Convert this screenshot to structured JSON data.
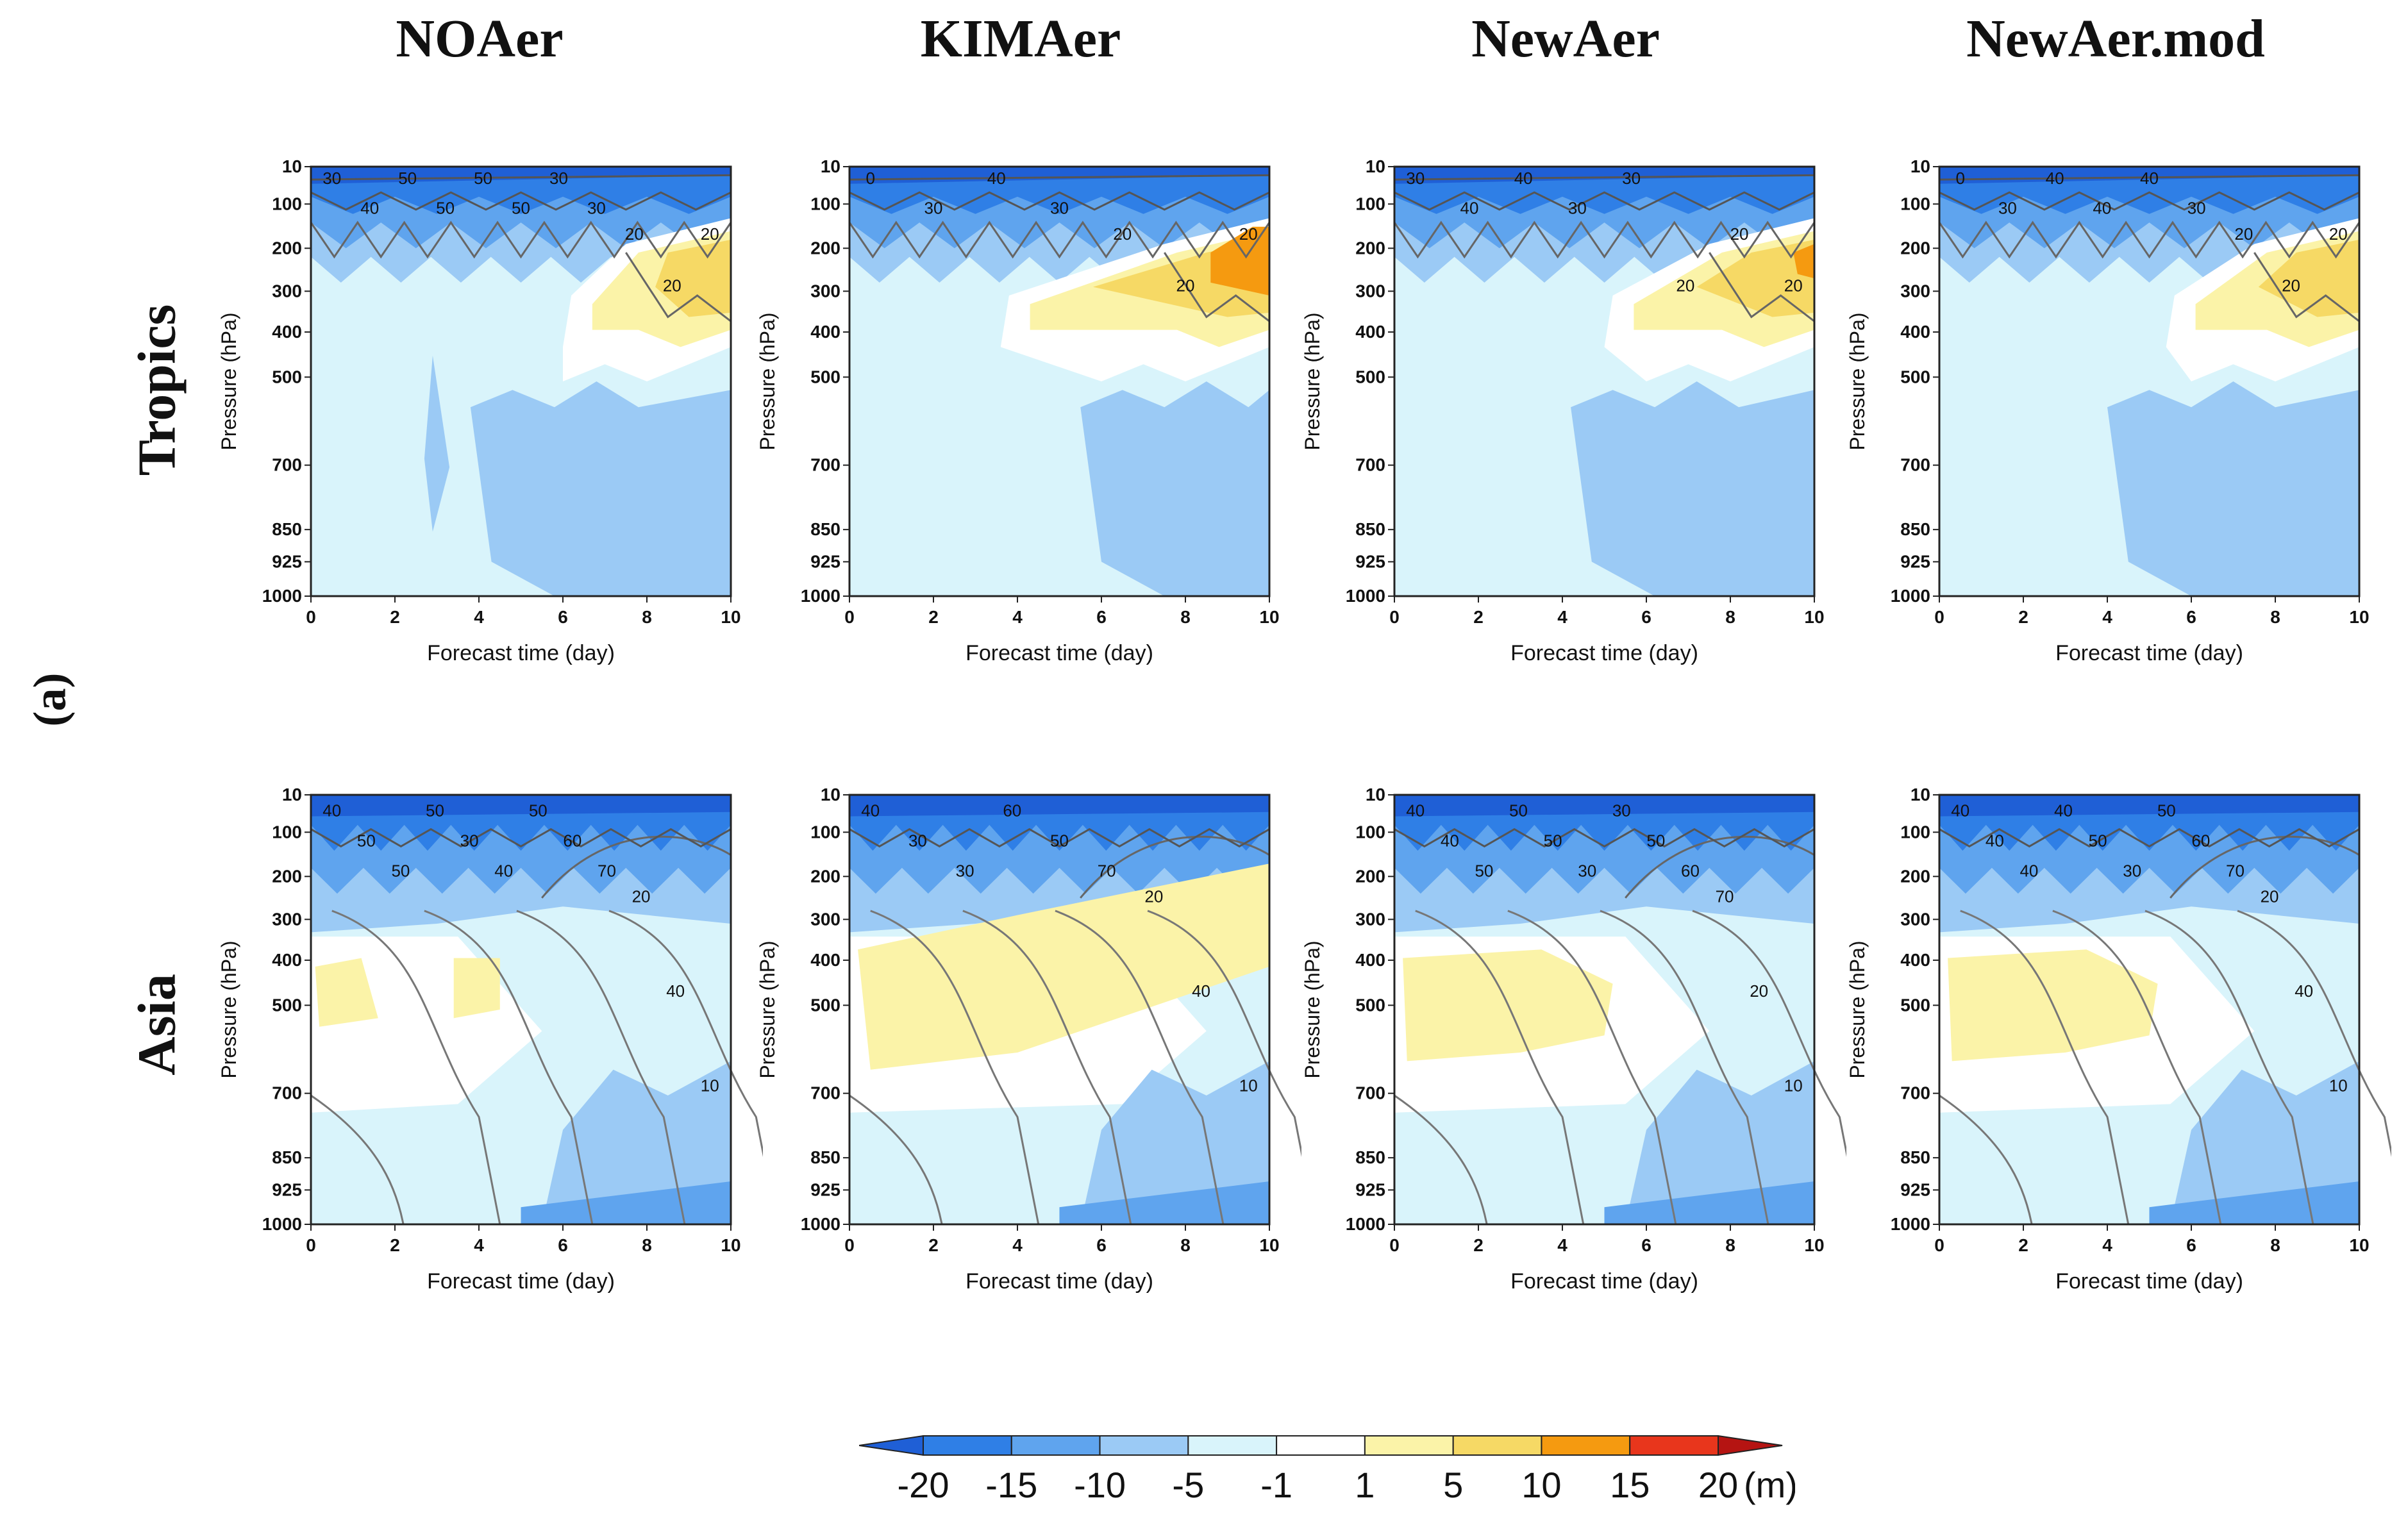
{
  "columns": [
    "NOAer",
    "KIMAer",
    "NewAer",
    "NewAer.mod"
  ],
  "rows": [
    "Tropics",
    "Asia"
  ],
  "panel_label": "(a)",
  "colorbar": {
    "levels": [
      "-20",
      "-15",
      "-10",
      "-5",
      "-1",
      "1",
      "5",
      "10",
      "15",
      "20"
    ],
    "unit": "(m)",
    "colors": [
      "#1f5fd6",
      "#2f7fe6",
      "#5fa4ee",
      "#9bcaf5",
      "#d9f4fb",
      "#ffffff",
      "#fbf3a8",
      "#f6d965",
      "#f59a10",
      "#e8361c",
      "#b51412"
    ]
  },
  "chart_data": {
    "type": "heatmap",
    "description_free": true,
    "xlabel": "Forecast time (day)",
    "ylabel": "Pressure (hPa)",
    "x_ticks": [
      "0",
      "2",
      "4",
      "6",
      "8",
      "10"
    ],
    "y_ticks": [
      "10",
      "100",
      "200",
      "300",
      "400",
      "500",
      "700",
      "850",
      "925",
      "1000"
    ],
    "xlim": [
      0,
      10
    ],
    "ylim_hPa": [
      1000,
      10
    ],
    "panels": [
      {
        "row": "Tropics",
        "column": "NOAer",
        "contour_labels": [
          "30",
          "40",
          "50",
          "50",
          "50",
          "50",
          "30",
          "30",
          "20",
          "20",
          "20"
        ]
      },
      {
        "row": "Tropics",
        "column": "KIMAer",
        "contour_labels": [
          "0",
          "30",
          "40",
          "30",
          "20",
          "20",
          "20"
        ]
      },
      {
        "row": "Tropics",
        "column": "NewAer",
        "contour_labels": [
          "30",
          "40",
          "40",
          "30",
          "30",
          "20",
          "20",
          "20"
        ]
      },
      {
        "row": "Tropics",
        "column": "NewAer.mod",
        "contour_labels": [
          "0",
          "30",
          "40",
          "40",
          "40",
          "30",
          "20",
          "20",
          "20"
        ]
      },
      {
        "row": "Asia",
        "column": "NOAer",
        "contour_labels": [
          "40",
          "50",
          "50",
          "50",
          "30",
          "40",
          "50",
          "60",
          "70",
          "20",
          "40",
          "10"
        ]
      },
      {
        "row": "Asia",
        "column": "KIMAer",
        "contour_labels": [
          "40",
          "30",
          "30",
          "60",
          "50",
          "70",
          "20",
          "40",
          "10"
        ]
      },
      {
        "row": "Asia",
        "column": "NewAer",
        "contour_labels": [
          "40",
          "40",
          "50",
          "50",
          "50",
          "30",
          "30",
          "50",
          "60",
          "70",
          "20",
          "10"
        ]
      },
      {
        "row": "Asia",
        "column": "NewAer.mod",
        "contour_labels": [
          "40",
          "40",
          "40",
          "40",
          "50",
          "30",
          "50",
          "60",
          "70",
          "20",
          "40",
          "10"
        ]
      }
    ]
  }
}
